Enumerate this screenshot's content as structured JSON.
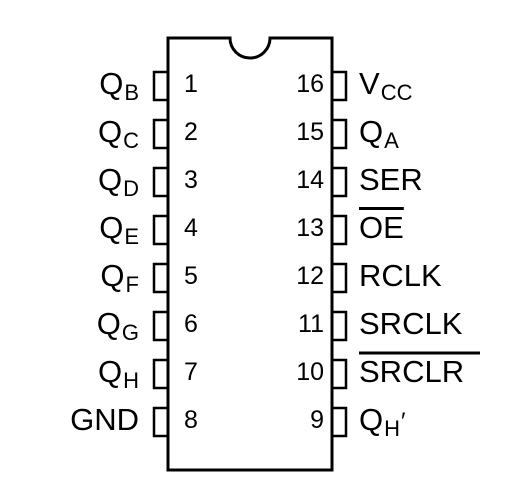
{
  "chip": {
    "left_pins": [
      {
        "number": "1",
        "label_main": "Q",
        "label_sub": "B"
      },
      {
        "number": "2",
        "label_main": "Q",
        "label_sub": "C"
      },
      {
        "number": "3",
        "label_main": "Q",
        "label_sub": "D"
      },
      {
        "number": "4",
        "label_main": "Q",
        "label_sub": "E"
      },
      {
        "number": "5",
        "label_main": "Q",
        "label_sub": "F"
      },
      {
        "number": "6",
        "label_main": "Q",
        "label_sub": "G"
      },
      {
        "number": "7",
        "label_main": "Q",
        "label_sub": "H"
      },
      {
        "number": "8",
        "label_main": "GND",
        "label_sub": ""
      }
    ],
    "right_pins": [
      {
        "number": "16",
        "label_main": "V",
        "label_sub": "CC",
        "overline": false,
        "prime": false
      },
      {
        "number": "15",
        "label_main": "Q",
        "label_sub": "A",
        "overline": false,
        "prime": false
      },
      {
        "number": "14",
        "label_main": "SER",
        "label_sub": "",
        "overline": false,
        "prime": false
      },
      {
        "number": "13",
        "label_main": "OE",
        "label_sub": "",
        "overline": true,
        "prime": false
      },
      {
        "number": "12",
        "label_main": "RCLK",
        "label_sub": "",
        "overline": false,
        "prime": false
      },
      {
        "number": "11",
        "label_main": "SRCLK",
        "label_sub": "",
        "overline": false,
        "prime": false
      },
      {
        "number": "10",
        "label_main": "SRCLR",
        "label_sub": "",
        "overline": true,
        "prime": false
      },
      {
        "number": "9",
        "label_main": "Q",
        "label_sub": "H",
        "overline": false,
        "prime": true
      }
    ],
    "prime_mark": "′"
  }
}
